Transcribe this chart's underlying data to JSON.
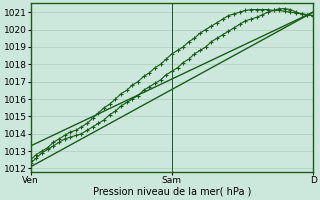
{
  "bg_color": "#cce8dc",
  "grid_color": "#aaccbb",
  "line_color": "#1a5c1a",
  "xlabel": "Pression niveau de la mer( hPa )",
  "ylim": [
    1011.8,
    1021.5
  ],
  "yticks": [
    1012,
    1013,
    1014,
    1015,
    1016,
    1017,
    1018,
    1019,
    1020,
    1021
  ],
  "xtick_labels": [
    "Ven",
    "Sam",
    "D"
  ],
  "xtick_positions": [
    0.0,
    0.5,
    1.0
  ],
  "axis_fontsize": 7,
  "tick_fontsize": 6.5,
  "trend1_x": [
    0.0,
    1.0
  ],
  "trend1_y": [
    1012.1,
    1021.0
  ],
  "trend2_x": [
    0.0,
    1.0
  ],
  "trend2_y": [
    1013.3,
    1021.0
  ],
  "data_x": [
    0.0,
    0.02,
    0.04,
    0.06,
    0.08,
    0.1,
    0.12,
    0.14,
    0.16,
    0.18,
    0.2,
    0.22,
    0.24,
    0.26,
    0.28,
    0.3,
    0.32,
    0.34,
    0.36,
    0.38,
    0.4,
    0.42,
    0.44,
    0.46,
    0.48,
    0.5,
    0.52,
    0.54,
    0.56,
    0.58,
    0.6,
    0.62,
    0.64,
    0.66,
    0.68,
    0.7,
    0.72,
    0.74,
    0.76,
    0.78,
    0.8,
    0.82,
    0.84,
    0.86,
    0.88,
    0.9,
    0.92,
    0.94,
    0.96,
    0.98,
    1.0
  ],
  "data_y_main": [
    1012.3,
    1012.6,
    1012.9,
    1013.1,
    1013.3,
    1013.5,
    1013.7,
    1013.8,
    1013.9,
    1014.0,
    1014.2,
    1014.4,
    1014.6,
    1014.8,
    1015.1,
    1015.3,
    1015.6,
    1015.8,
    1016.0,
    1016.2,
    1016.5,
    1016.7,
    1016.9,
    1017.1,
    1017.4,
    1017.6,
    1017.8,
    1018.1,
    1018.3,
    1018.6,
    1018.8,
    1019.0,
    1019.3,
    1019.5,
    1019.7,
    1019.9,
    1020.1,
    1020.3,
    1020.5,
    1020.6,
    1020.7,
    1020.85,
    1021.0,
    1021.1,
    1021.2,
    1021.2,
    1021.15,
    1021.0,
    1020.9,
    1020.85,
    1020.8
  ],
  "data_y_upper": [
    1012.5,
    1012.8,
    1013.0,
    1013.2,
    1013.5,
    1013.7,
    1013.9,
    1014.1,
    1014.2,
    1014.4,
    1014.6,
    1014.9,
    1015.2,
    1015.5,
    1015.7,
    1016.0,
    1016.3,
    1016.5,
    1016.8,
    1017.0,
    1017.3,
    1017.5,
    1017.8,
    1018.0,
    1018.3,
    1018.6,
    1018.8,
    1019.0,
    1019.3,
    1019.5,
    1019.8,
    1020.0,
    1020.2,
    1020.4,
    1020.6,
    1020.8,
    1020.9,
    1021.0,
    1021.1,
    1021.15,
    1021.15,
    1021.15,
    1021.15,
    1021.1,
    1021.1,
    1021.05,
    1021.0,
    1020.95,
    1020.9,
    1020.85,
    1020.8
  ]
}
